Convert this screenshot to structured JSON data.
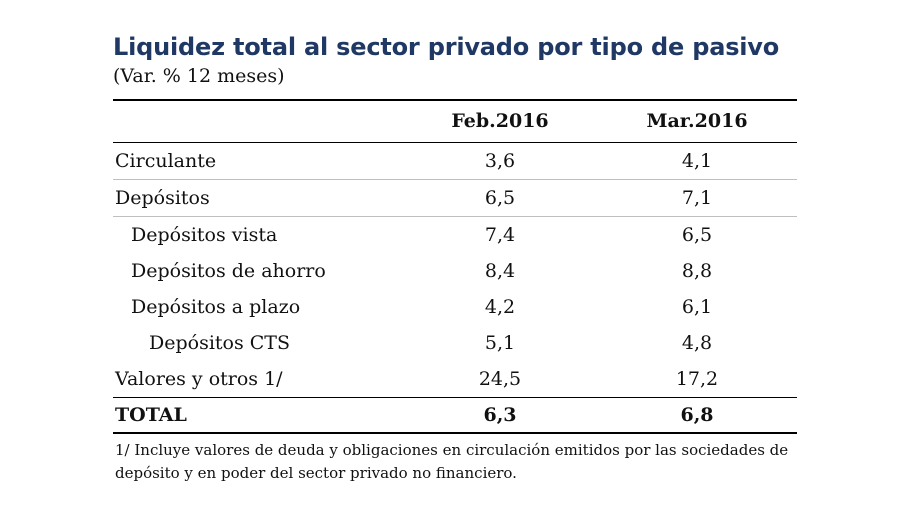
{
  "title": "Liquidez total al sector privado por tipo de pasivo",
  "subtitle": "(Var. % 12 meses)",
  "table": {
    "columns": [
      "Feb.2016",
      "Mar.2016"
    ],
    "rows": [
      {
        "label": "Circulante",
        "level": 0,
        "values": [
          "3,6",
          "4,1"
        ]
      },
      {
        "label": "Depósitos",
        "level": 0,
        "values": [
          "6,5",
          "7,1"
        ]
      },
      {
        "label": "Depósitos vista",
        "level": 1,
        "values": [
          "7,4",
          "6,5"
        ]
      },
      {
        "label": "Depósitos de ahorro",
        "level": 1,
        "values": [
          "8,4",
          "8,8"
        ]
      },
      {
        "label": "Depósitos a plazo",
        "level": 1,
        "values": [
          "4,2",
          "6,1"
        ]
      },
      {
        "label": "Depósitos CTS",
        "level": 2,
        "values": [
          "5,1",
          "4,8"
        ]
      },
      {
        "label": "Valores y otros 1/",
        "level": 0,
        "values": [
          "24,5",
          "17,2"
        ]
      }
    ],
    "total": {
      "label": "TOTAL",
      "values": [
        "6,3",
        "6,8"
      ]
    }
  },
  "footnote": "1/ Incluye valores de deuda y obligaciones en circulación emitidos por las sociedades de depósito y en poder del sector privado no financiero.",
  "colors": {
    "title": "#1f3864"
  }
}
